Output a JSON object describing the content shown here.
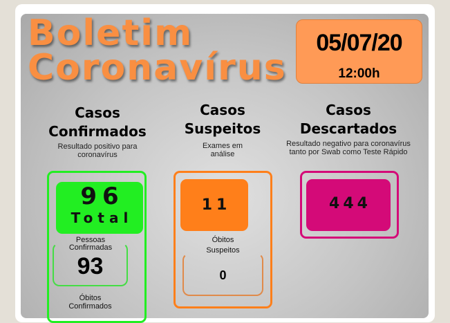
{
  "title": {
    "line1": "Boletim",
    "line2": "Coronavírus"
  },
  "date": {
    "date": "05/07/20",
    "time": "12:00h"
  },
  "columns": [
    {
      "heading1": "Casos",
      "heading2": "Confirmados",
      "description": "Resultado positivo para coronavírus",
      "total": "96",
      "total_label": "Total",
      "sub1_label": "Pessoas Confirmadas",
      "sub1_value": "93",
      "sub2_label": "Óbitos",
      "sub2_label2": "Confirmados"
    },
    {
      "heading1": "Casos",
      "heading2": "Suspeitos",
      "description": "Exames em análise",
      "value": "11",
      "sub_label1": "Óbitos",
      "sub_label2": "Suspeitos",
      "sub_value": "0"
    },
    {
      "heading1": "Casos",
      "heading2": "Descartados",
      "description": "Resultado negativo para coronavírus tanto por Swab como Teste Rápido",
      "value": "444"
    }
  ],
  "colors": {
    "title": "#f98f42",
    "confirmed": "#22ee22",
    "suspect": "#ff7f1a",
    "discarded": "#d40a78"
  }
}
